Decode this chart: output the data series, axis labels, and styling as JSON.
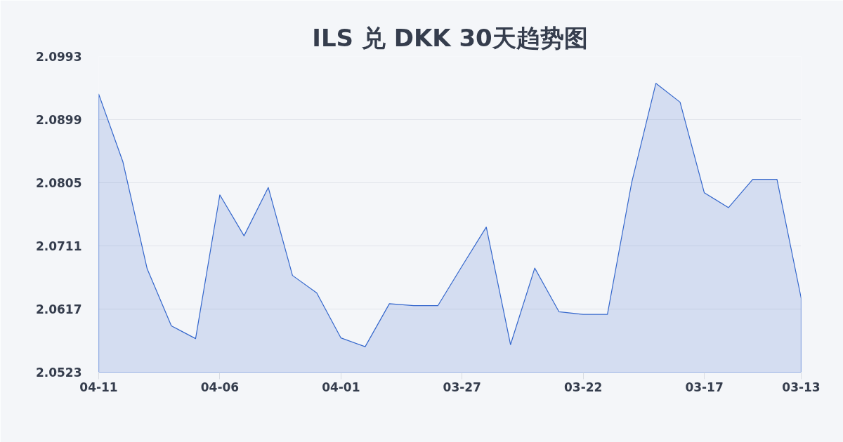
{
  "chart_data": {
    "type": "area",
    "title": "ILS 兑 DKK 30天趋势图",
    "categories": [
      "04-11",
      null,
      null,
      null,
      null,
      "04-06",
      null,
      null,
      null,
      null,
      "04-01",
      null,
      null,
      null,
      null,
      "03-27",
      null,
      null,
      null,
      null,
      "03-22",
      null,
      null,
      null,
      null,
      "03-17",
      null,
      null,
      null,
      "03-13"
    ],
    "color": "#3366cc",
    "values": [
      2.0937,
      2.0836,
      2.0677,
      2.0592,
      2.0573,
      2.0787,
      2.0726,
      2.0798,
      2.0667,
      2.0641,
      2.0574,
      2.0561,
      2.0625,
      2.0622,
      2.0622,
      2.0681,
      2.0739,
      2.0564,
      2.0678,
      2.0613,
      2.0609,
      2.0609,
      2.0805,
      2.0953,
      2.0925,
      2.079,
      2.0768,
      2.081,
      2.081,
      2.0633
    ],
    "ylim": [
      2.0523,
      2.0993
    ],
    "yticks": [
      2.0523,
      2.0617,
      2.0711,
      2.0805,
      2.0899,
      2.0993
    ],
    "grid": "y"
  }
}
